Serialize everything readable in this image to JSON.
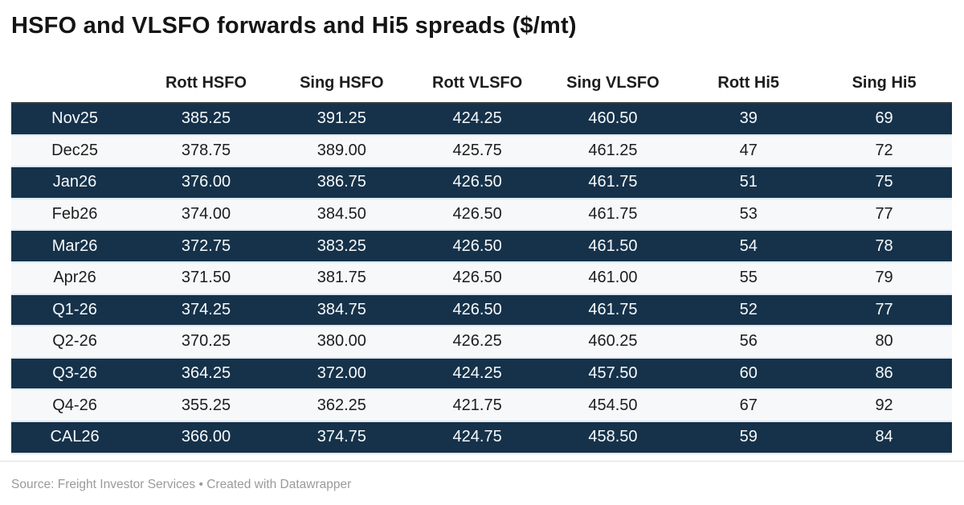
{
  "chart_data": {
    "type": "table",
    "title": "HSFO and VLSFO forwards and Hi5 spreads ($/mt)",
    "columns": [
      "",
      "Rott HSFO",
      "Sing HSFO",
      "Rott VLSFO",
      "Sing VLSFO",
      "Rott Hi5",
      "Sing Hi5"
    ],
    "rows": [
      {
        "label": "Nov25",
        "values": [
          "385.25",
          "391.25",
          "424.25",
          "460.50",
          "39",
          "69"
        ]
      },
      {
        "label": "Dec25",
        "values": [
          "378.75",
          "389.00",
          "425.75",
          "461.25",
          "47",
          "72"
        ]
      },
      {
        "label": "Jan26",
        "values": [
          "376.00",
          "386.75",
          "426.50",
          "461.75",
          "51",
          "75"
        ]
      },
      {
        "label": "Feb26",
        "values": [
          "374.00",
          "384.50",
          "426.50",
          "461.75",
          "53",
          "77"
        ]
      },
      {
        "label": "Mar26",
        "values": [
          "372.75",
          "383.25",
          "426.50",
          "461.50",
          "54",
          "78"
        ]
      },
      {
        "label": "Apr26",
        "values": [
          "371.50",
          "381.75",
          "426.50",
          "461.00",
          "55",
          "79"
        ]
      },
      {
        "label": "Q1-26",
        "values": [
          "374.25",
          "384.75",
          "426.50",
          "461.75",
          "52",
          "77"
        ]
      },
      {
        "label": "Q2-26",
        "values": [
          "370.25",
          "380.00",
          "426.25",
          "460.25",
          "56",
          "80"
        ]
      },
      {
        "label": "Q3-26",
        "values": [
          "364.25",
          "372.00",
          "424.25",
          "457.50",
          "60",
          "86"
        ]
      },
      {
        "label": "Q4-26",
        "values": [
          "355.25",
          "362.25",
          "421.75",
          "454.50",
          "67",
          "92"
        ]
      },
      {
        "label": "CAL26",
        "values": [
          "366.00",
          "374.75",
          "424.75",
          "458.50",
          "59",
          "84"
        ]
      }
    ],
    "layout": {
      "striping": "alternating starting dark",
      "alignment": "center"
    }
  },
  "footer": {
    "prefix": "Source: ",
    "source_link": "Freight Investor Services",
    "separator": " • ",
    "credit_link": "Created with Datawrapper"
  },
  "colors": {
    "row_dark": "#16324a",
    "row_light": "#f7f8f9",
    "divider": "#dce9f3",
    "header_rule": "#3b3b3b",
    "title_text": "#151515",
    "dark_row_text": "#f7fafc",
    "footer_text": "#9a9a9a"
  }
}
